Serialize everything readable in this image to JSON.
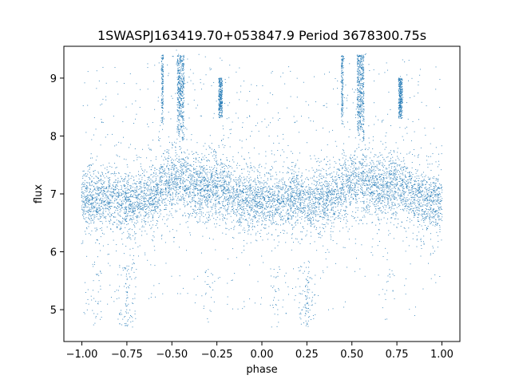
{
  "chart_data": {
    "type": "scatter",
    "title": "1SWASPJ163419.70+053847.9 Period 3678300.75s",
    "xlabel": "phase",
    "ylabel": "flux",
    "xlim": [
      -1.1,
      1.1
    ],
    "ylim": [
      4.45,
      9.55
    ],
    "xticks": [
      -1.0,
      -0.75,
      -0.5,
      -0.25,
      0.0,
      0.25,
      0.5,
      0.75,
      1.0
    ],
    "xtick_labels": [
      "−1.00",
      "−0.75",
      "−0.50",
      "−0.25",
      "0.00",
      "0.25",
      "0.50",
      "0.75",
      "1.00"
    ],
    "yticks": [
      5,
      6,
      7,
      8,
      9
    ],
    "ytick_labels": [
      "5",
      "6",
      "7",
      "8",
      "9"
    ],
    "grid": false,
    "marker_color": "#1f77b4",
    "series": [
      {
        "baseline_flux_by_phase": {
          "phase": [
            0.0,
            0.1,
            0.2,
            0.25,
            0.3,
            0.4,
            0.45,
            0.5,
            0.55,
            0.6,
            0.7,
            0.75,
            0.8,
            0.9,
            1.0
          ],
          "flux": [
            6.85,
            6.9,
            6.95,
            6.8,
            6.85,
            7.0,
            7.1,
            7.2,
            7.25,
            7.15,
            7.1,
            7.15,
            7.05,
            6.9,
            6.9
          ]
        },
        "typical_scatter": 0.25,
        "flare_columns": [
          {
            "phase": 0.447,
            "flux_range": [
              8.2,
              9.4
            ]
          },
          {
            "phase": 0.535,
            "flux_range": [
              8.0,
              9.4
            ]
          },
          {
            "phase": 0.548,
            "flux_range": [
              8.1,
              9.4
            ]
          },
          {
            "phase": 0.562,
            "flux_range": [
              7.9,
              9.4
            ]
          },
          {
            "phase": 0.765,
            "flux_range": [
              8.3,
              9.0
            ]
          },
          {
            "phase": 0.775,
            "flux_range": [
              8.3,
              9.0
            ]
          }
        ],
        "dip_range": [
          4.7,
          5.8
        ]
      }
    ]
  }
}
